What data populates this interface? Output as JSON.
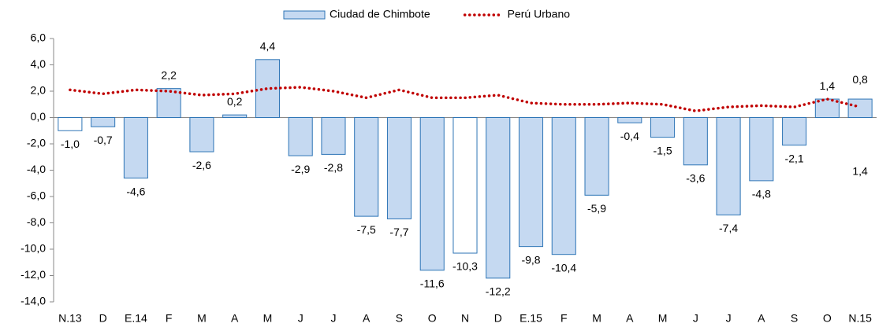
{
  "chart_data": {
    "type": "bar",
    "categories": [
      "N.13",
      "D",
      "E.14",
      "F",
      "M",
      "A",
      "M",
      "J",
      "J",
      "A",
      "S",
      "O",
      "N",
      "D",
      "E.15",
      "F",
      "M",
      "A",
      "M",
      "J",
      "J",
      "A",
      "S",
      "O",
      "N.15"
    ],
    "series": [
      {
        "name": "Ciudad de Chimbote",
        "type": "bar",
        "color": "#c5d9f1",
        "stroke": "#2e75b6",
        "colors": [
          "#ffffff",
          "#c5d9f1",
          "#c5d9f1",
          "#c5d9f1",
          "#c5d9f1",
          "#c5d9f1",
          "#c5d9f1",
          "#c5d9f1",
          "#c5d9f1",
          "#c5d9f1",
          "#c5d9f1",
          "#c5d9f1",
          "#ffffff",
          "#c5d9f1",
          "#c5d9f1",
          "#c5d9f1",
          "#c5d9f1",
          "#c5d9f1",
          "#c5d9f1",
          "#c5d9f1",
          "#c5d9f1",
          "#c5d9f1",
          "#c5d9f1",
          "#c5d9f1",
          "#c5d9f1"
        ],
        "values": [
          -1.0,
          -0.7,
          -4.6,
          2.2,
          -2.6,
          0.2,
          4.4,
          -2.9,
          -2.8,
          -7.5,
          -7.7,
          -11.6,
          -10.3,
          -12.2,
          -9.8,
          -10.4,
          -5.9,
          -0.4,
          -1.5,
          -3.6,
          -7.4,
          -4.8,
          -2.1,
          1.4,
          1.4
        ],
        "value_labels": [
          "-1,0",
          "-0,7",
          "-4,6",
          "2,2",
          "-2,6",
          "0,2",
          "4,4",
          "-2,9",
          "-2,8",
          "-7,5",
          "-7,7",
          "-11,6",
          "-10,3",
          "-12,2",
          "-9,8",
          "-10,4",
          "-5,9",
          "-0,4",
          "-1,5",
          "-3,6",
          "-7,4",
          "-4,8",
          "-2,1",
          "1,4",
          "1,4"
        ]
      },
      {
        "name": "Perú Urbano",
        "type": "line",
        "color": "#c00000",
        "dotted": true,
        "values": [
          2.1,
          1.8,
          2.1,
          2.0,
          1.7,
          1.8,
          2.2,
          2.3,
          2.0,
          1.5,
          2.1,
          1.5,
          1.5,
          1.7,
          1.1,
          1.0,
          1.0,
          1.1,
          1.0,
          0.5,
          0.8,
          0.9,
          0.8,
          1.4,
          0.8
        ],
        "value_labels": [
          null,
          null,
          null,
          null,
          null,
          null,
          null,
          null,
          null,
          null,
          null,
          null,
          null,
          null,
          null,
          null,
          null,
          null,
          null,
          null,
          null,
          null,
          null,
          null,
          "0,8"
        ]
      }
    ],
    "ylim": [
      -14,
      6
    ],
    "yticks": [
      {
        "value": -14,
        "label": "-14,0"
      },
      {
        "value": -12,
        "label": "-12,0"
      },
      {
        "value": -10,
        "label": "-10,0"
      },
      {
        "value": -8,
        "label": "-8,0"
      },
      {
        "value": -6,
        "label": "-6,0"
      },
      {
        "value": -4,
        "label": "-4,0"
      },
      {
        "value": -2,
        "label": "-2,0"
      },
      {
        "value": 0,
        "label": "0,0"
      },
      {
        "value": 2,
        "label": "2,0"
      },
      {
        "value": 4,
        "label": "4,0"
      },
      {
        "value": 6,
        "label": "6,0"
      }
    ],
    "legend": "top"
  }
}
